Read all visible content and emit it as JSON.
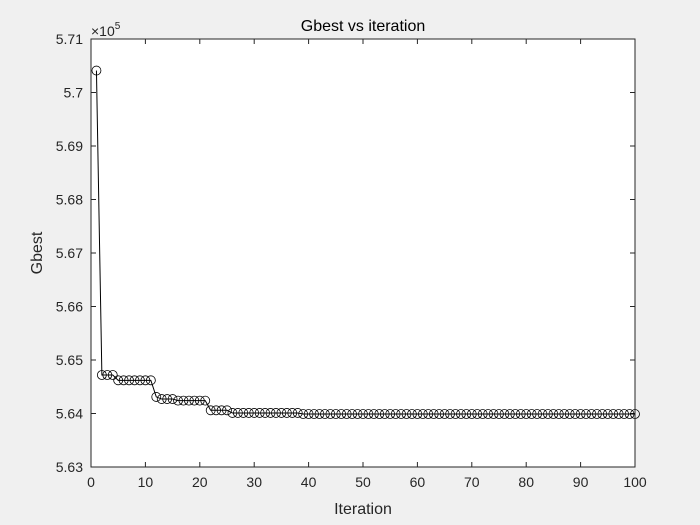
{
  "chart_data": {
    "type": "line",
    "title": "Gbest vs iteration",
    "xlabel": "Iteration",
    "ylabel": "Gbest",
    "xlim": [
      0,
      100
    ],
    "ylim": [
      5.63,
      5.71
    ],
    "y_multiplier": {
      "base": "×10",
      "exponent": "5"
    },
    "x_ticks": [
      0,
      10,
      20,
      30,
      40,
      50,
      60,
      70,
      80,
      90,
      100
    ],
    "x_tick_labels": [
      "0",
      "10",
      "20",
      "30",
      "40",
      "50",
      "60",
      "70",
      "80",
      "90",
      "100"
    ],
    "y_ticks": [
      5.63,
      5.64,
      5.65,
      5.66,
      5.67,
      5.68,
      5.69,
      5.7,
      5.71
    ],
    "y_tick_labels": [
      "5.63",
      "5.64",
      "5.65",
      "5.66",
      "5.67",
      "5.68",
      "5.69",
      "5.7",
      "5.71"
    ],
    "grid": false,
    "legend": false,
    "marker": "circle",
    "line_color": "#000000",
    "background": "#ffffff",
    "figure_background": "#f0f0f0",
    "series": [
      {
        "x": [
          1,
          2,
          3,
          4,
          5,
          6,
          7,
          8,
          9,
          10,
          11,
          12,
          13,
          14,
          15,
          16,
          17,
          18,
          19,
          20,
          21,
          22,
          23,
          24,
          25,
          26,
          27,
          28,
          29,
          30,
          31,
          32,
          33,
          34,
          35,
          36,
          37,
          38,
          39,
          40,
          41,
          42,
          43,
          44,
          45,
          46,
          47,
          48,
          49,
          50,
          51,
          52,
          53,
          54,
          55,
          56,
          57,
          58,
          59,
          60,
          61,
          62,
          63,
          64,
          65,
          66,
          67,
          68,
          69,
          70,
          71,
          72,
          73,
          74,
          75,
          76,
          77,
          78,
          79,
          80,
          81,
          82,
          83,
          84,
          85,
          86,
          87,
          88,
          89,
          90,
          91,
          92,
          93,
          94,
          95,
          96,
          97,
          98,
          99,
          100
        ],
        "values": [
          5.7041,
          5.6472,
          5.6472,
          5.6472,
          5.6462,
          5.6462,
          5.6462,
          5.6462,
          5.6462,
          5.6462,
          5.6462,
          5.6431,
          5.6427,
          5.6427,
          5.6427,
          5.6424,
          5.6424,
          5.6424,
          5.6424,
          5.6424,
          5.6424,
          5.6406,
          5.6406,
          5.6406,
          5.6406,
          5.6401,
          5.6401,
          5.6401,
          5.6401,
          5.6401,
          5.6401,
          5.6401,
          5.6401,
          5.6401,
          5.6401,
          5.6401,
          5.6401,
          5.6401,
          5.6399,
          5.6399,
          5.6399,
          5.6399,
          5.6399,
          5.6399,
          5.6399,
          5.6399,
          5.6399,
          5.6399,
          5.6399,
          5.6399,
          5.6399,
          5.6399,
          5.6399,
          5.6399,
          5.6399,
          5.6399,
          5.6399,
          5.6399,
          5.6399,
          5.6399,
          5.6399,
          5.6399,
          5.6399,
          5.6399,
          5.6399,
          5.6399,
          5.6399,
          5.6399,
          5.6399,
          5.6399,
          5.6399,
          5.6399,
          5.6399,
          5.6399,
          5.6399,
          5.6399,
          5.6399,
          5.6399,
          5.6399,
          5.6399,
          5.6399,
          5.6399,
          5.6399,
          5.6399,
          5.6399,
          5.6399,
          5.6399,
          5.6399,
          5.6399,
          5.6399,
          5.6399,
          5.6399,
          5.6399,
          5.6399,
          5.6399,
          5.6399,
          5.6399,
          5.6399,
          5.6399,
          5.6399
        ]
      }
    ]
  }
}
